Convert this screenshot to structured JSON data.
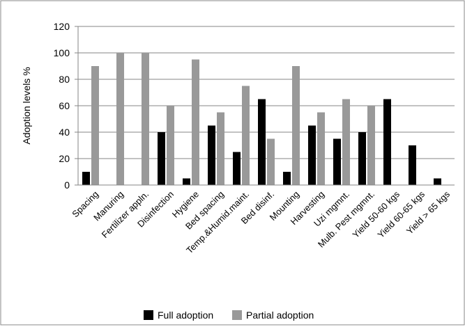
{
  "chart_data": {
    "type": "bar",
    "title": "",
    "xlabel": "",
    "ylabel": "Adoption levels %",
    "ylim": [
      0,
      120
    ],
    "yticks": [
      0,
      20,
      40,
      60,
      80,
      100,
      120
    ],
    "grid": true,
    "legend_position": "bottom",
    "categories": [
      "Spacing",
      "Manuring",
      "Fertilizer appln.",
      "Disinfection",
      "Hygiene",
      "Bed spacing",
      "Temp.&Humid.maint.",
      "Bed disinf.",
      "Mounting",
      "Harvesting",
      "Uzi mgmnt.",
      "Mulb. Pest mgmnt.",
      "Yield 50-60 kgs",
      "Yield 60-65 kgs",
      "Yield > 65 kgs"
    ],
    "series": [
      {
        "name": "Full adoption",
        "color": "#000000",
        "values": [
          10,
          0,
          0,
          40,
          5,
          45,
          25,
          65,
          10,
          45,
          35,
          40,
          65,
          30,
          5
        ]
      },
      {
        "name": "Partial adoption",
        "color": "#999999",
        "values": [
          90,
          100,
          100,
          60,
          95,
          55,
          75,
          35,
          90,
          55,
          65,
          60,
          0,
          0,
          0
        ]
      }
    ]
  }
}
